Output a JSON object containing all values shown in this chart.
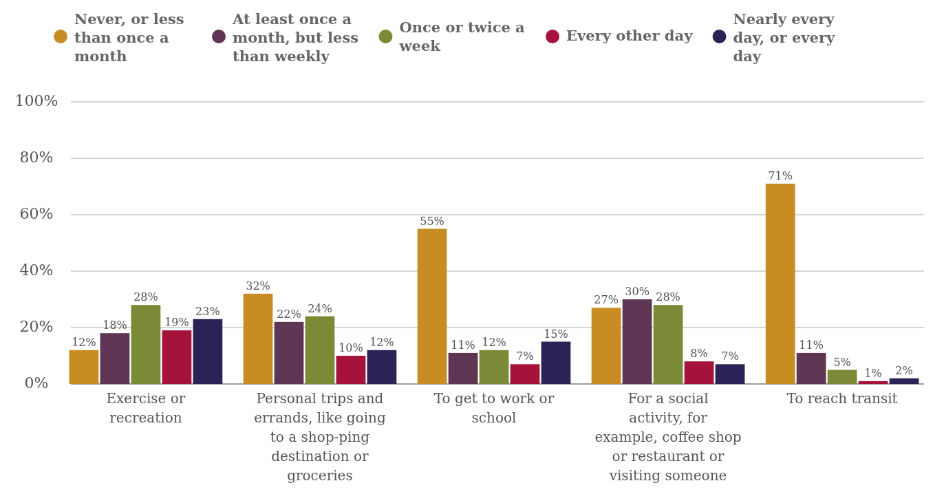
{
  "chart_data": {
    "type": "bar",
    "categories": [
      "Exercise or recreation",
      "Personal trips and errands, like going to a shop-ping destination or groceries",
      "To get to work or school",
      "For a social activity, for example, coffee shop or restaurant or visiting someone",
      "To reach transit"
    ],
    "series": [
      {
        "name": "Never, or less than once a month",
        "color": "#c88d22",
        "values": [
          12,
          32,
          55,
          27,
          71
        ],
        "value_labels": [
          "12%",
          "32%",
          "55%",
          "27%",
          "71%"
        ]
      },
      {
        "name": "At least once a month, but less than weekly",
        "color": "#5e3552",
        "values": [
          18,
          22,
          11,
          30,
          11
        ],
        "value_labels": [
          "18%",
          "22%",
          "11%",
          "30%",
          "11%"
        ]
      },
      {
        "name": "Once or twice a week",
        "color": "#7a8a37",
        "values": [
          28,
          24,
          12,
          28,
          5
        ],
        "value_labels": [
          "28%",
          "24%",
          "12%",
          "28%",
          "5%"
        ]
      },
      {
        "name": "Every other day",
        "color": "#a5133c",
        "values": [
          19,
          10,
          7,
          8,
          1
        ],
        "value_labels": [
          "19%",
          "10%",
          "7%",
          "8%",
          "1%"
        ]
      },
      {
        "name": "Nearly every day, or every day",
        "color": "#2d2256",
        "values": [
          23,
          12,
          15,
          7,
          2
        ],
        "value_labels": [
          "23%",
          "12%",
          "15%",
          "7%",
          "2%"
        ]
      }
    ],
    "ylim": [
      0,
      100
    ],
    "yticks": [
      {
        "value": 0,
        "label": "0%"
      },
      {
        "value": 20,
        "label": "20%"
      },
      {
        "value": 40,
        "label": "40%"
      },
      {
        "value": 60,
        "label": "60%"
      },
      {
        "value": 80,
        "label": "80%"
      },
      {
        "value": 100,
        "label": "100%"
      }
    ],
    "grid": "y",
    "legend": "top"
  }
}
